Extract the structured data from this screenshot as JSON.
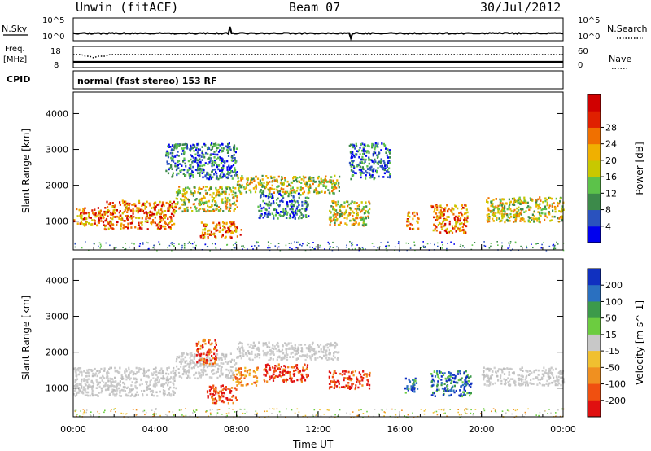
{
  "header": {
    "station": "Unwin (fitACF)",
    "beam": "Beam 07",
    "date": "30/Jul/2012"
  },
  "top_panels": {
    "nsky_label": "N.Sky",
    "nsearch_label": "N.Search",
    "nsky_ticks": [
      "10^5",
      "10^0"
    ],
    "nsearch_ticks": [
      "10^5",
      "10^0"
    ],
    "freq_label_line1": "Freq.",
    "freq_label_line2": "[MHz]",
    "freq_ticks": [
      "18",
      "8"
    ],
    "nave_label": "Nave",
    "nave_ticks": [
      "60",
      "0"
    ],
    "cpid_label": "CPID",
    "cpid_text": "normal (fast stereo) 153 RF"
  },
  "chart_data": [
    {
      "type": "heatmap",
      "title": "Power",
      "xlabel": "",
      "ylabel": "Slant Range [km]",
      "y_ticks": [
        "1000",
        "2000",
        "3000",
        "4000"
      ],
      "xlim": [
        0,
        24
      ],
      "ylim": [
        200,
        4600
      ],
      "colorbar": {
        "label": "Power [dB]",
        "ticks": [
          "4",
          "8",
          "12",
          "16",
          "20",
          "24",
          "28"
        ],
        "colors": [
          "#0000ee",
          "#2a52be",
          "#3c8a4a",
          "#5cc24a",
          "#c8c800",
          "#f0b000",
          "#f07000",
          "#e02000",
          "#d00000"
        ]
      },
      "echo_regions": [
        {
          "t": [
            0,
            1.5
          ],
          "range": [
            900,
            1400
          ],
          "level": "high"
        },
        {
          "t": [
            1.5,
            5.0
          ],
          "range": [
            800,
            1600
          ],
          "level": "high"
        },
        {
          "t": [
            5.0,
            8.0
          ],
          "range": [
            1300,
            2000
          ],
          "level": "medium"
        },
        {
          "t": [
            6.2,
            8.2
          ],
          "range": [
            550,
            1000
          ],
          "level": "high"
        },
        {
          "t": [
            4.5,
            8.0
          ],
          "range": [
            2200,
            3200
          ],
          "level": "low"
        },
        {
          "t": [
            9.0,
            11.5
          ],
          "range": [
            1100,
            1800
          ],
          "level": "low"
        },
        {
          "t": [
            8.0,
            13.0
          ],
          "range": [
            1800,
            2300
          ],
          "level": "medium"
        },
        {
          "t": [
            12.5,
            14.5
          ],
          "range": [
            900,
            1600
          ],
          "level": "medium"
        },
        {
          "t": [
            13.5,
            15.5
          ],
          "range": [
            2200,
            3200
          ],
          "level": "low"
        },
        {
          "t": [
            16.3,
            16.9
          ],
          "range": [
            800,
            1300
          ],
          "level": "high"
        },
        {
          "t": [
            17.5,
            19.3
          ],
          "range": [
            700,
            1500
          ],
          "level": "high"
        },
        {
          "t": [
            20.2,
            24.0
          ],
          "range": [
            1000,
            1700
          ],
          "level": "medium"
        }
      ]
    },
    {
      "type": "heatmap",
      "title": "Velocity",
      "xlabel": "Time UT",
      "ylabel": "Slant Range [km]",
      "x_ticks": [
        "00:00",
        "04:00",
        "08:00",
        "12:00",
        "16:00",
        "20:00",
        "00:00"
      ],
      "y_ticks": [
        "1000",
        "2000",
        "3000",
        "4000"
      ],
      "xlim": [
        0,
        24
      ],
      "ylim": [
        200,
        4600
      ],
      "colorbar": {
        "label": "Velocity [m s^-1]",
        "ticks": [
          "200",
          "100",
          "50",
          "15",
          "-15",
          "-50",
          "-100",
          "-200"
        ],
        "colors": [
          "#1030c0",
          "#2a70c0",
          "#3c9a4a",
          "#6ccc40",
          "#c8c8c8",
          "#f0c030",
          "#f09020",
          "#f05010",
          "#e01010"
        ]
      },
      "echo_regions": [
        {
          "t": [
            0,
            5.0
          ],
          "range": [
            800,
            1600
          ],
          "level": "ground"
        },
        {
          "t": [
            5.0,
            8.0
          ],
          "range": [
            1300,
            2000
          ],
          "level": "ground"
        },
        {
          "t": [
            6.0,
            7.0
          ],
          "range": [
            1700,
            2400
          ],
          "level": "neg_fast"
        },
        {
          "t": [
            6.5,
            8.0
          ],
          "range": [
            600,
            1100
          ],
          "level": "neg_fast"
        },
        {
          "t": [
            7.8,
            9.0
          ],
          "range": [
            1100,
            1600
          ],
          "level": "neg"
        },
        {
          "t": [
            9.3,
            11.5
          ],
          "range": [
            1200,
            1700
          ],
          "level": "neg_fast"
        },
        {
          "t": [
            8.0,
            13.0
          ],
          "range": [
            1800,
            2300
          ],
          "level": "ground"
        },
        {
          "t": [
            12.5,
            14.5
          ],
          "range": [
            1000,
            1500
          ],
          "level": "neg_fast"
        },
        {
          "t": [
            16.2,
            16.9
          ],
          "range": [
            900,
            1300
          ],
          "level": "pos"
        },
        {
          "t": [
            17.5,
            19.5
          ],
          "range": [
            800,
            1500
          ],
          "level": "pos"
        },
        {
          "t": [
            20.0,
            24.0
          ],
          "range": [
            1100,
            1600
          ],
          "level": "ground"
        }
      ]
    }
  ],
  "styles": {
    "axis_color": "#000000",
    "background": "#ffffff"
  }
}
